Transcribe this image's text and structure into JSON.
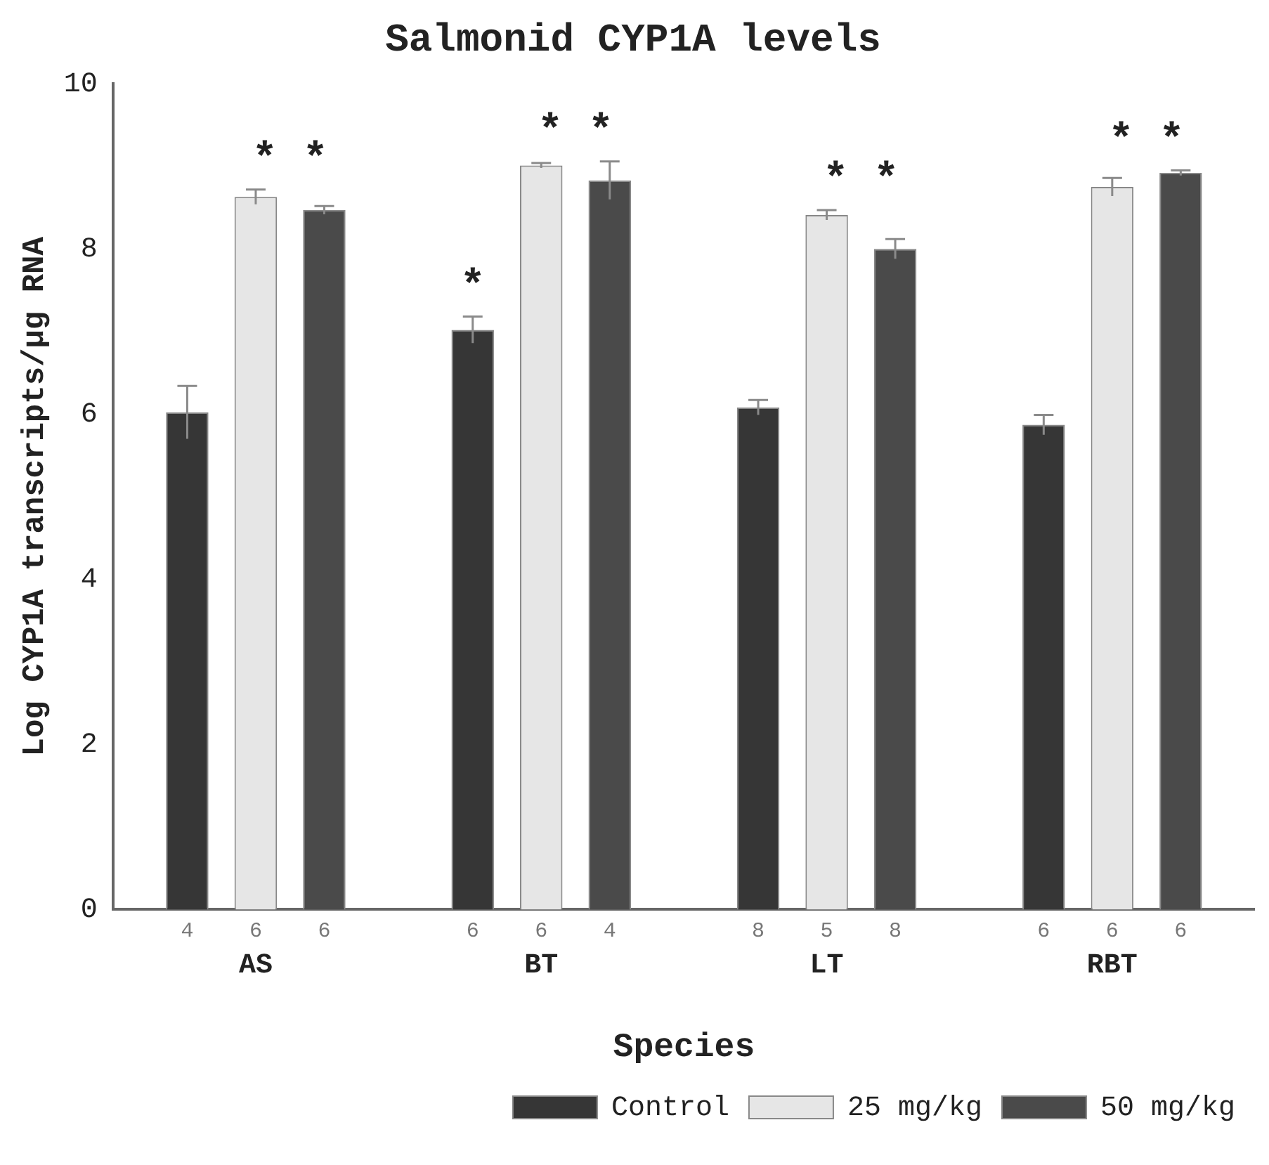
{
  "chart_data": {
    "type": "bar",
    "title": "Salmonid CYP1A levels",
    "xlabel": "Species",
    "ylabel": "Log CYP1A transcripts/µg RNA",
    "categories": [
      "AS",
      "BT",
      "LT",
      "RBT"
    ],
    "series": [
      {
        "name": "Control",
        "color": "#363636",
        "values": [
          6.02,
          7.02,
          6.08,
          5.87
        ],
        "errors": [
          0.32,
          0.16,
          0.09,
          0.12
        ]
      },
      {
        "name": "25 mg/kg",
        "color": "#e6e6e6",
        "values": [
          8.63,
          9.01,
          8.41,
          8.75
        ],
        "errors": [
          0.09,
          0.03,
          0.06,
          0.11
        ]
      },
      {
        "name": "50 mg/kg",
        "color": "#4a4a4a",
        "values": [
          8.47,
          8.83,
          8.0,
          8.92
        ],
        "errors": [
          0.05,
          0.23,
          0.12,
          0.03
        ]
      }
    ],
    "ylim": [
      0,
      10
    ],
    "yticks": [
      0,
      2,
      4,
      6,
      8,
      10
    ],
    "grid": false,
    "legend": "bottom right",
    "annotations": [
      "* *",
      "*",
      "* *",
      "* *",
      "* *",
      "4",
      "6",
      "6",
      "6",
      "6",
      "4",
      "8",
      "5",
      "8",
      "6",
      "6",
      "6"
    ]
  }
}
